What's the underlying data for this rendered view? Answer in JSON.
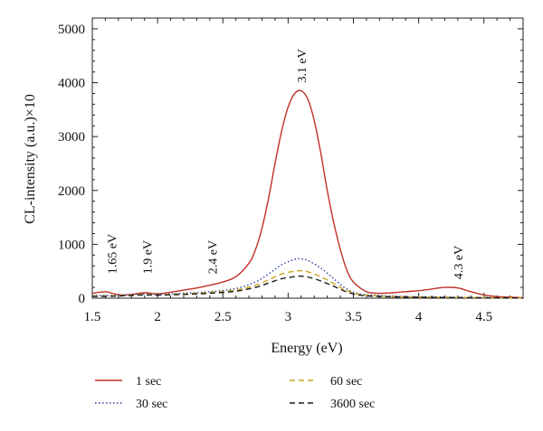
{
  "chart_data": {
    "type": "line",
    "title": "",
    "xlabel": "Energy (eV)",
    "ylabel": "CL-intensity (a.u.)×10",
    "xlim": [
      1.5,
      4.8
    ],
    "ylim": [
      0,
      5200
    ],
    "xticks": [
      1.5,
      2,
      2.5,
      3,
      3.5,
      4,
      4.5
    ],
    "xtick_labels": [
      "1.5",
      "2",
      "2.5",
      "3",
      "3.5",
      "4",
      "4.5"
    ],
    "yticks": [
      0,
      1000,
      2000,
      3000,
      4000,
      5000
    ],
    "ytick_labels": [
      "0",
      "1000",
      "2000",
      "3000",
      "4000",
      "5000"
    ],
    "grid": false,
    "legend_position": "bottom",
    "series": [
      {
        "name": "1 sec",
        "color": "#c0302a",
        "dash": "solid",
        "x": [
          1.5,
          1.6,
          1.65,
          1.72,
          1.8,
          1.9,
          2.0,
          2.1,
          2.2,
          2.3,
          2.4,
          2.5,
          2.6,
          2.7,
          2.75,
          2.8,
          2.85,
          2.9,
          2.95,
          3.0,
          3.05,
          3.1,
          3.15,
          3.2,
          3.25,
          3.3,
          3.35,
          3.4,
          3.45,
          3.5,
          3.6,
          3.7,
          3.8,
          3.9,
          4.0,
          4.1,
          4.2,
          4.3,
          4.4,
          4.5,
          4.6,
          4.7,
          4.8
        ],
        "y": [
          90,
          120,
          90,
          60,
          70,
          100,
          80,
          110,
          150,
          190,
          240,
          300,
          400,
          650,
          900,
          1300,
          1850,
          2500,
          3100,
          3550,
          3800,
          3850,
          3700,
          3300,
          2700,
          2000,
          1400,
          900,
          520,
          300,
          120,
          90,
          100,
          120,
          140,
          170,
          200,
          190,
          120,
          60,
          30,
          20,
          10
        ]
      },
      {
        "name": "30 sec",
        "color": "#2a3a9a",
        "dash": "dotted",
        "x": [
          1.5,
          1.7,
          1.9,
          2.0,
          2.2,
          2.4,
          2.6,
          2.75,
          2.85,
          2.95,
          3.05,
          3.1,
          3.15,
          3.25,
          3.35,
          3.45,
          3.55,
          3.7,
          3.9,
          4.2,
          4.5,
          4.8
        ],
        "y": [
          50,
          50,
          80,
          70,
          90,
          120,
          180,
          300,
          450,
          620,
          720,
          730,
          700,
          560,
          360,
          170,
          80,
          50,
          30,
          20,
          10,
          5
        ]
      },
      {
        "name": "60 sec",
        "color": "#c8a418",
        "dash": "dashed",
        "x": [
          1.5,
          1.7,
          1.9,
          2.0,
          2.2,
          2.4,
          2.6,
          2.75,
          2.85,
          2.95,
          3.05,
          3.1,
          3.15,
          3.25,
          3.35,
          3.45,
          3.55,
          3.7,
          3.9,
          4.2,
          4.5,
          4.8
        ],
        "y": [
          40,
          45,
          70,
          60,
          80,
          105,
          150,
          240,
          340,
          450,
          500,
          510,
          490,
          400,
          270,
          140,
          70,
          40,
          25,
          15,
          10,
          5
        ]
      },
      {
        "name": "3600 sec",
        "color": "#1a1a1a",
        "dash": "dashed",
        "x": [
          1.5,
          1.7,
          1.9,
          2.0,
          2.2,
          2.4,
          2.6,
          2.75,
          2.85,
          2.95,
          3.05,
          3.1,
          3.15,
          3.25,
          3.35,
          3.45,
          3.55,
          3.7,
          3.9,
          4.2,
          4.5,
          4.8
        ],
        "y": [
          30,
          40,
          60,
          55,
          70,
          90,
          130,
          200,
          280,
          360,
          400,
          410,
          395,
          320,
          220,
          115,
          55,
          30,
          20,
          12,
          8,
          4
        ]
      }
    ],
    "annotations": [
      {
        "text": "1.65 eV",
        "x": 1.65,
        "y": 450
      },
      {
        "text": "1.9 eV",
        "x": 1.92,
        "y": 450
      },
      {
        "text": "2.4 eV",
        "x": 2.42,
        "y": 450
      },
      {
        "text": "3.1 eV",
        "x": 3.1,
        "y": 4000
      },
      {
        "text": "4.3 eV",
        "x": 4.3,
        "y": 350
      }
    ]
  }
}
